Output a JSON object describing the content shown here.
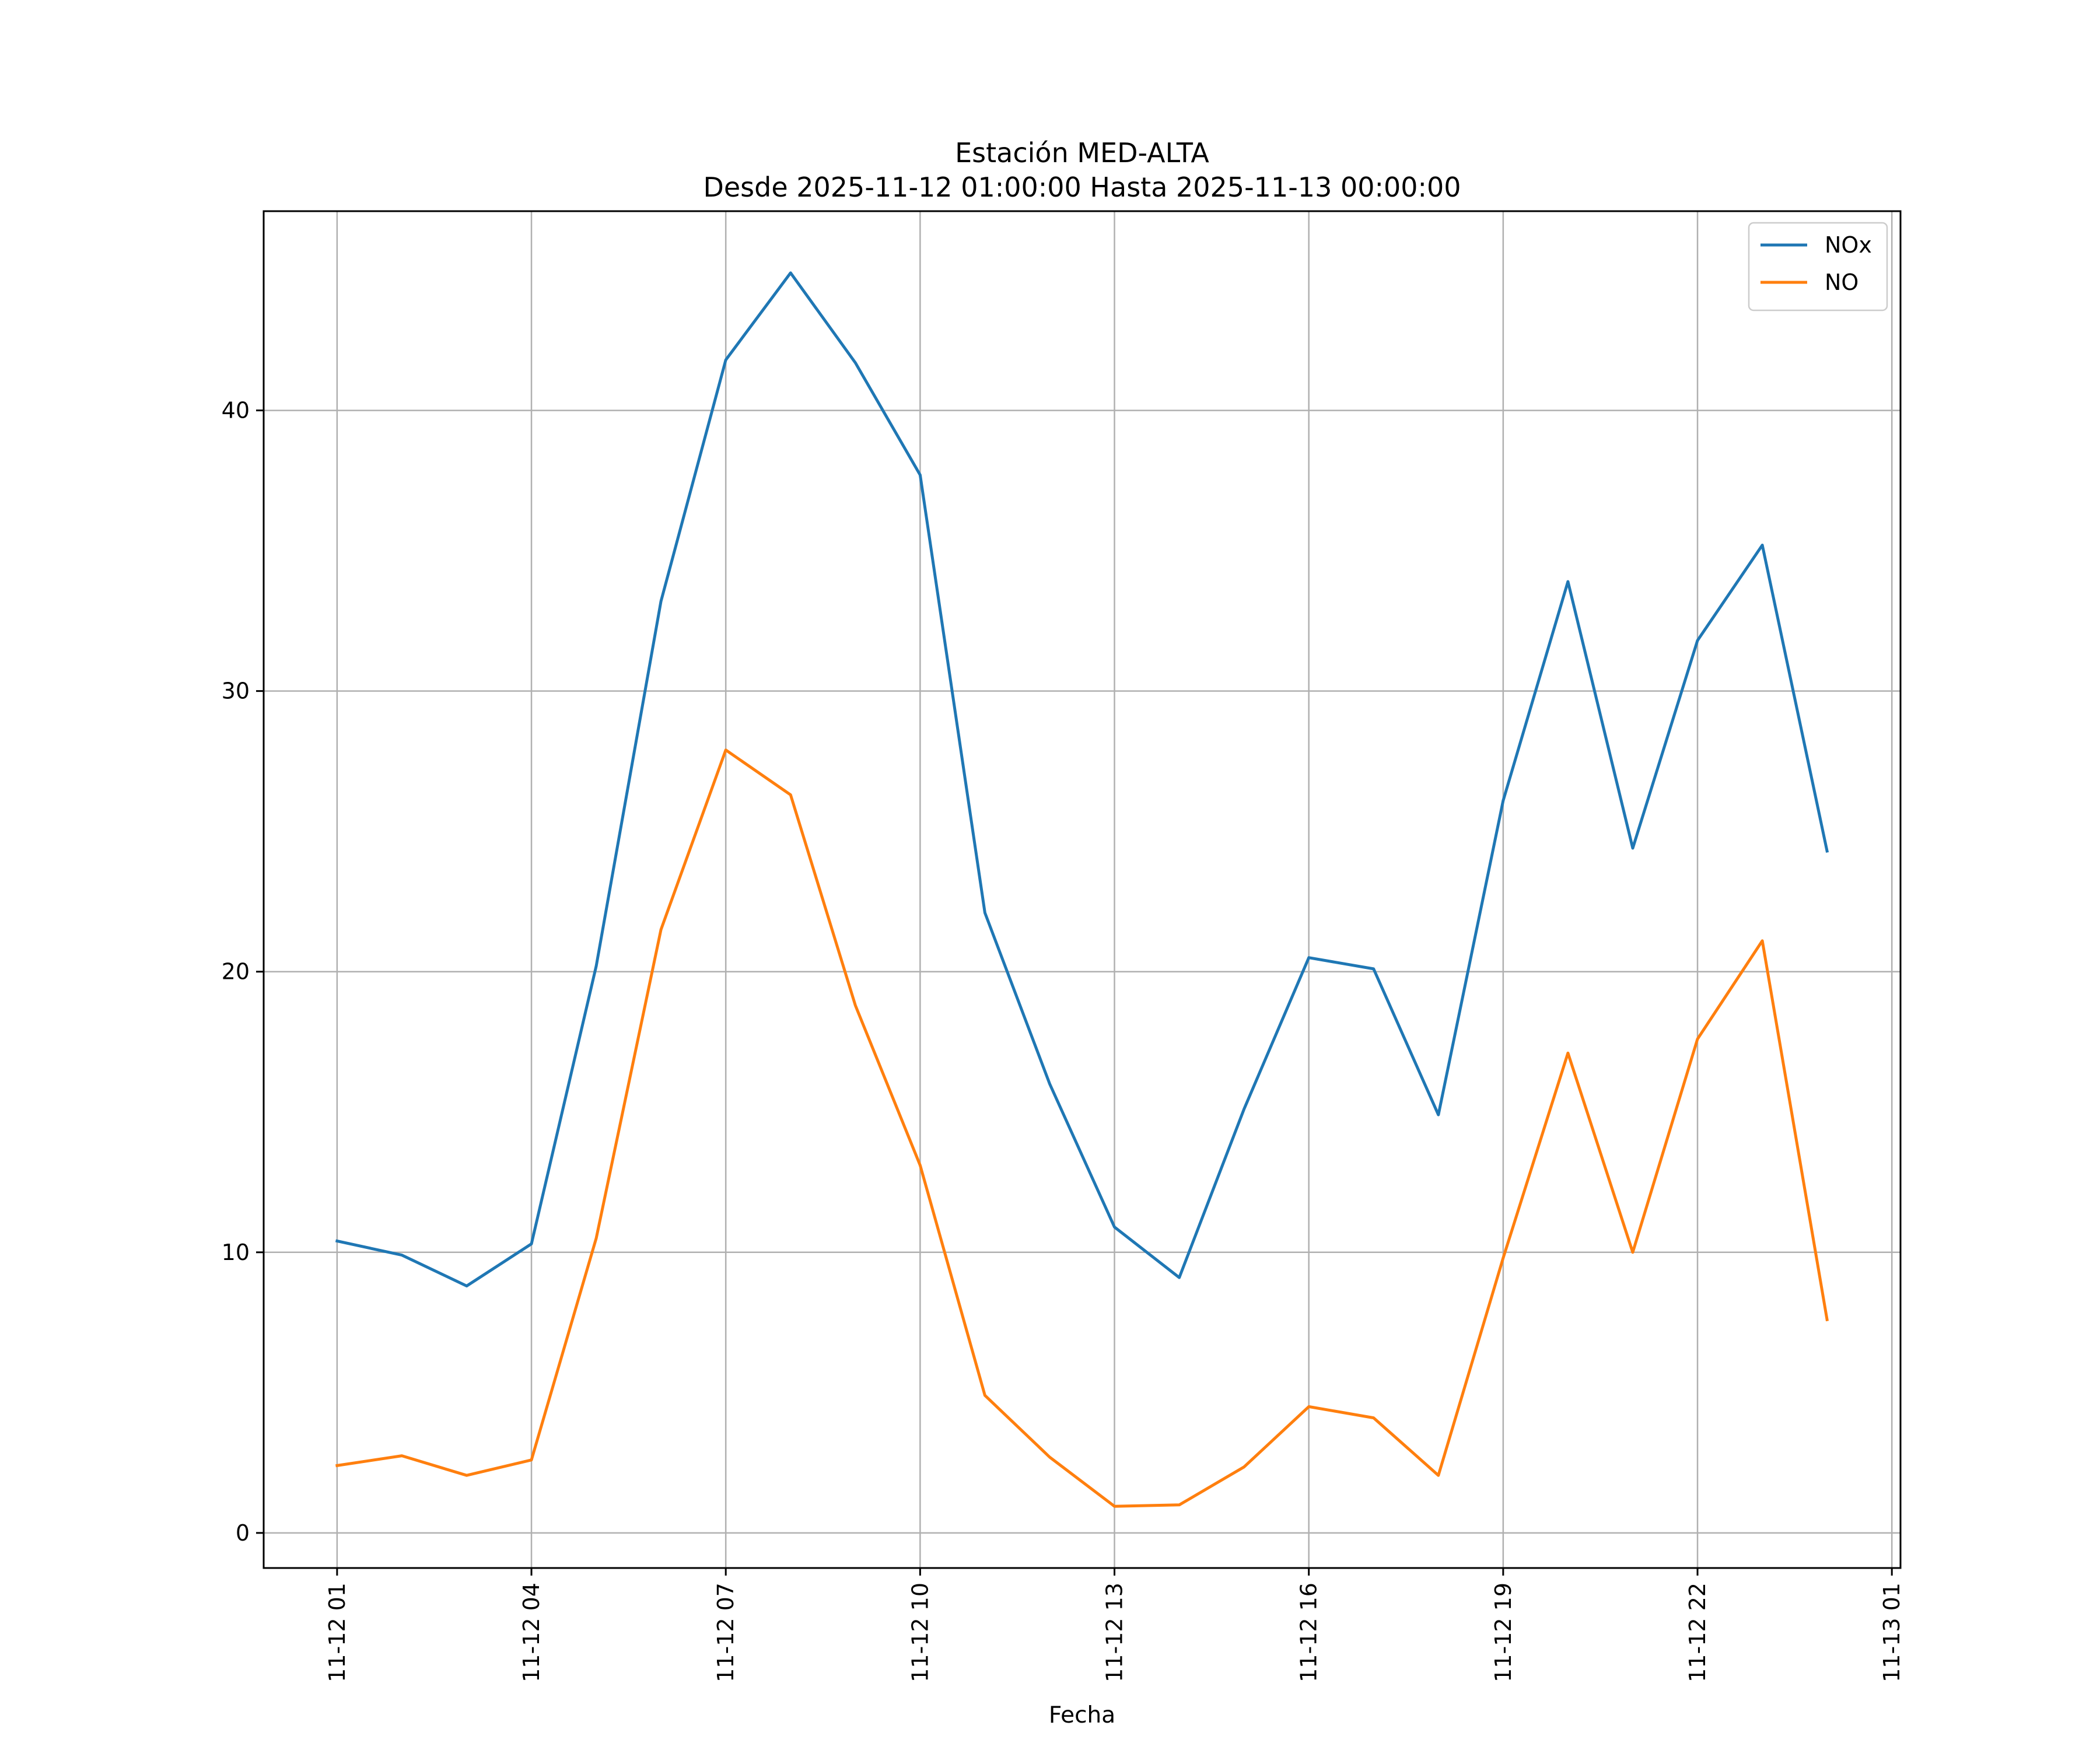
{
  "chart_data": {
    "type": "line",
    "title": "Estación MED-ALTA",
    "subtitle": "Desde 2025-11-12 01:00:00 Hasta 2025-11-13 00:00:00",
    "xlabel": "Fecha",
    "ylabel": "",
    "x": [
      "2025-11-12 01:00",
      "2025-11-12 02:00",
      "2025-11-12 03:00",
      "2025-11-12 04:00",
      "2025-11-12 05:00",
      "2025-11-12 06:00",
      "2025-11-12 07:00",
      "2025-11-12 08:00",
      "2025-11-12 09:00",
      "2025-11-12 10:00",
      "2025-11-12 11:00",
      "2025-11-12 12:00",
      "2025-11-12 13:00",
      "2025-11-12 14:00",
      "2025-11-12 15:00",
      "2025-11-12 16:00",
      "2025-11-12 17:00",
      "2025-11-12 18:00",
      "2025-11-12 19:00",
      "2025-11-12 20:00",
      "2025-11-12 21:00",
      "2025-11-12 22:00",
      "2025-11-12 23:00",
      "2025-11-13 00:00"
    ],
    "xlim": [
      "2025-11-11 23:52",
      "2025-11-13 01:08"
    ],
    "x_ticks": [
      {
        "value": "2025-11-12 01:00",
        "label": "11-12 01"
      },
      {
        "value": "2025-11-12 04:00",
        "label": "11-12 04"
      },
      {
        "value": "2025-11-12 07:00",
        "label": "11-12 07"
      },
      {
        "value": "2025-11-12 10:00",
        "label": "11-12 10"
      },
      {
        "value": "2025-11-12 13:00",
        "label": "11-12 13"
      },
      {
        "value": "2025-11-12 16:00",
        "label": "11-12 16"
      },
      {
        "value": "2025-11-12 19:00",
        "label": "11-12 19"
      },
      {
        "value": "2025-11-12 22:00",
        "label": "11-12 22"
      },
      {
        "value": "2025-11-13 01:00",
        "label": "11-13 01"
      }
    ],
    "ylim": [
      -1.25,
      47.1
    ],
    "y_ticks": [
      0,
      10,
      20,
      30,
      40
    ],
    "grid": true,
    "legend_position": "top-right",
    "series": [
      {
        "name": "NOx",
        "color": "#1f77b4",
        "values": [
          10.4,
          9.9,
          8.8,
          10.3,
          20.2,
          33.2,
          41.8,
          44.9,
          41.7,
          37.7,
          22.1,
          16.0,
          10.9,
          9.1,
          15.1,
          20.5,
          20.1,
          14.9,
          26.1,
          33.9,
          24.4,
          31.8,
          35.2,
          24.3
        ]
      },
      {
        "name": "NO",
        "color": "#ff7f0e",
        "values": [
          2.4,
          2.75,
          2.05,
          2.6,
          10.5,
          21.5,
          27.9,
          26.3,
          18.8,
          13.1,
          4.9,
          2.7,
          0.95,
          1.0,
          2.35,
          4.5,
          4.1,
          2.05,
          9.8,
          17.1,
          10.0,
          17.6,
          21.1,
          7.6
        ]
      }
    ]
  }
}
